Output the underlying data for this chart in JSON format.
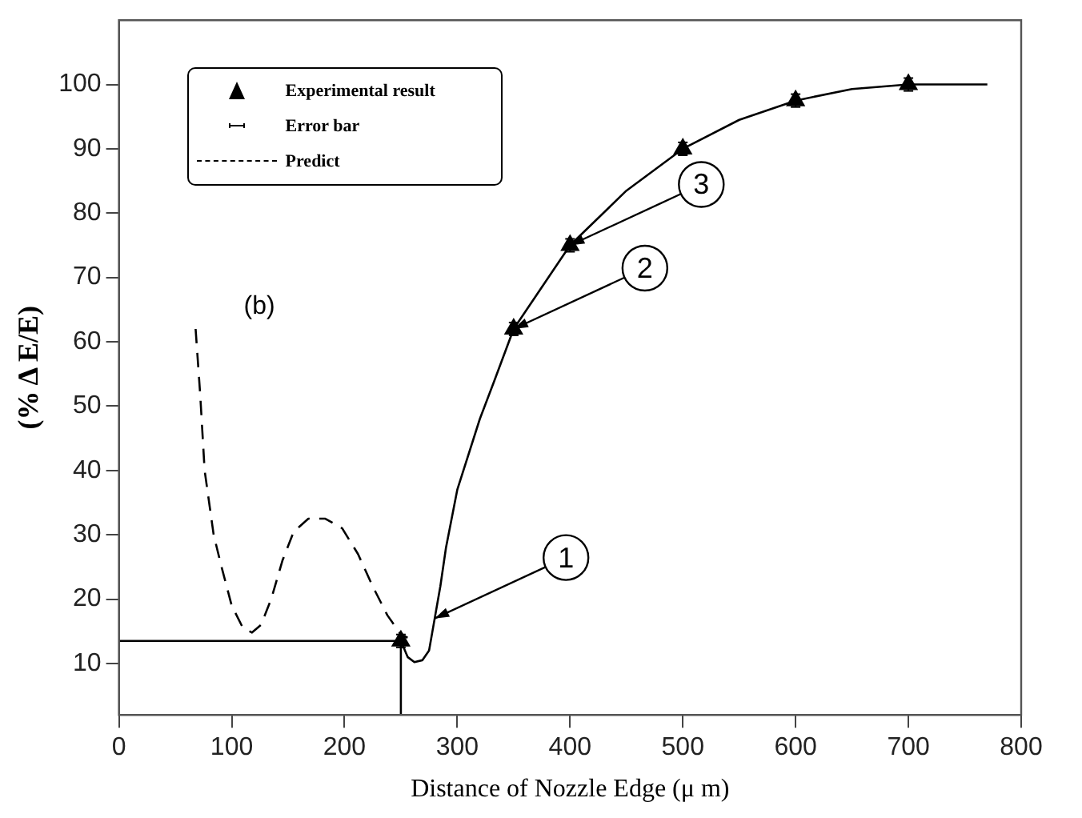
{
  "chart_data": {
    "type": "scatter",
    "xlabel": "Distance of Nozzle Edge (μ m)",
    "ylabel": "(% Δ E/E)",
    "xlim": [
      0,
      800
    ],
    "xticks": [
      0,
      100,
      200,
      300,
      400,
      500,
      600,
      700,
      800
    ],
    "ylim": [
      2,
      110
    ],
    "yticks": [
      10,
      20,
      30,
      40,
      50,
      60,
      70,
      80,
      90,
      100
    ],
    "grid": false,
    "legend": "top left",
    "series": [
      {
        "name": "Experimental result",
        "marker": "triangle",
        "color": "#000000",
        "x": [
          250,
          350,
          400,
          500,
          600,
          700
        ],
        "values": [
          13.5,
          62,
          75,
          90,
          97.5,
          100
        ],
        "errors": [
          1,
          1,
          1,
          1,
          1,
          1
        ]
      },
      {
        "name": "Predict",
        "type": "line",
        "line_style": "dashed",
        "marker": "none",
        "color": "#000000",
        "x": [
          68,
          72,
          76,
          84,
          91,
          100,
          110,
          118,
          126,
          135,
          145,
          155,
          168,
          183,
          198,
          212,
          225,
          238,
          250,
          256
        ],
        "values": [
          62,
          52,
          40,
          30,
          25,
          19,
          15.5,
          14.8,
          16,
          20,
          26,
          30.5,
          32.5,
          32.5,
          31,
          27,
          22,
          17.5,
          14.5,
          14
        ]
      },
      {
        "type": "line",
        "line_style": "solid",
        "marker": "none",
        "color": "#000000",
        "x": [
          250,
          256,
          262,
          269,
          275,
          280,
          285,
          290,
          300,
          320,
          333,
          350,
          400,
          450,
          500,
          550,
          600,
          650,
          700,
          770
        ],
        "values": [
          13.5,
          11,
          10.2,
          10.5,
          12,
          17,
          22,
          28,
          37,
          48,
          54,
          62,
          75,
          83.5,
          90,
          94.5,
          97.5,
          99.3,
          100,
          100
        ]
      },
      {
        "type": "line",
        "line_style": "solid",
        "marker": "none",
        "color": "#000000",
        "x": [
          0,
          250,
          250
        ],
        "values": [
          13.5,
          13.5,
          2
        ]
      }
    ],
    "annotations": [
      "(b)",
      "Error bar",
      {
        "text": "1",
        "x": 280,
        "y": 17
      },
      {
        "text": "2",
        "x": 350,
        "y": 62
      },
      {
        "text": "3",
        "x": 400,
        "y": 75
      }
    ]
  }
}
